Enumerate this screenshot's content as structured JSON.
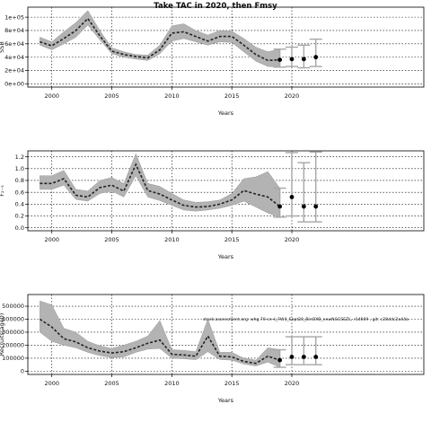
{
  "figure_title": "Take TAC in 2020, then Fmsy",
  "annotation": "stock.assessment.org: whg.70-ce-k_FW4_Sept20_BinOXB_newNGCSEZL, r14609 , git: c28ddc2a44a",
  "colors": {
    "band": "#b3b3b3",
    "median": "#222222",
    "error_bar": "#a6a6a6",
    "point": "#000000",
    "grid": "#000000"
  },
  "chart_data": [
    {
      "type": "line",
      "title": "",
      "xlabel": "Years",
      "ylabel": "SSB",
      "xlim": [
        1998,
        2031
      ],
      "ylim": [
        -5000,
        115000
      ],
      "xticks": [
        2000,
        2005,
        2010,
        2015,
        2020
      ],
      "yticks": [
        0,
        20000,
        40000,
        60000,
        80000,
        100000
      ],
      "ytick_labels": [
        "0e+00",
        "2e+04",
        "4e+04",
        "6e+04",
        "8e+04",
        "1e+05"
      ],
      "grid": true,
      "series": [
        {
          "x": [
            1999,
            2000,
            2001,
            2002,
            2003,
            2004,
            2005,
            2006,
            2007,
            2008,
            2009,
            2010,
            2011,
            2012,
            2013,
            2014,
            2015,
            2016,
            2017,
            2018,
            2019
          ],
          "median": [
            63000,
            57000,
            68000,
            80000,
            98000,
            72000,
            49000,
            44000,
            41000,
            39000,
            51000,
            76000,
            78000,
            71000,
            64000,
            71000,
            71000,
            58000,
            44000,
            35000,
            36000
          ],
          "lower": [
            58000,
            51000,
            60000,
            70000,
            88000,
            66000,
            45000,
            40000,
            37000,
            35000,
            45000,
            64000,
            68000,
            63000,
            58000,
            63000,
            62000,
            48000,
            34000,
            26000,
            25000
          ],
          "upper": [
            70000,
            63000,
            78000,
            92000,
            110000,
            80000,
            54000,
            48000,
            44000,
            43000,
            58000,
            87000,
            90000,
            80000,
            73000,
            80000,
            79000,
            68000,
            55000,
            48000,
            52000
          ]
        }
      ],
      "projections": [
        {
          "x": 2020,
          "value": 37000,
          "low": 26000,
          "high": 55000
        },
        {
          "x": 2021,
          "value": 37000,
          "low": 24000,
          "high": 58000
        },
        {
          "x": 2022,
          "value": 40000,
          "low": 26000,
          "high": 67000
        }
      ]
    },
    {
      "type": "line",
      "title": "",
      "xlabel": "Years",
      "ylabel": "F₂₋₅",
      "xlim": [
        1998,
        2031
      ],
      "ylim": [
        -0.05,
        1.3
      ],
      "xticks": [
        2000,
        2005,
        2010,
        2015,
        2020
      ],
      "yticks": [
        0.0,
        0.2,
        0.4,
        0.6,
        0.8,
        1.0,
        1.2
      ],
      "ytick_labels": [
        "0.0",
        "0.2",
        "0.4",
        "0.6",
        "0.8",
        "1.0",
        "1.2"
      ],
      "grid": true,
      "series": [
        {
          "x": [
            1999,
            2000,
            2001,
            2002,
            2003,
            2004,
            2005,
            2006,
            2007,
            2008,
            2009,
            2010,
            2011,
            2012,
            2013,
            2014,
            2015,
            2016,
            2017,
            2018,
            2019
          ],
          "median": [
            0.75,
            0.75,
            0.83,
            0.55,
            0.52,
            0.68,
            0.72,
            0.62,
            1.07,
            0.63,
            0.57,
            0.47,
            0.38,
            0.35,
            0.36,
            0.4,
            0.47,
            0.63,
            0.57,
            0.52,
            0.36
          ],
          "lower": [
            0.65,
            0.65,
            0.72,
            0.48,
            0.45,
            0.58,
            0.62,
            0.52,
            0.88,
            0.52,
            0.46,
            0.38,
            0.3,
            0.28,
            0.3,
            0.33,
            0.38,
            0.45,
            0.35,
            0.25,
            0.18
          ],
          "upper": [
            0.88,
            0.88,
            0.97,
            0.65,
            0.62,
            0.8,
            0.85,
            0.75,
            1.25,
            0.75,
            0.7,
            0.58,
            0.47,
            0.43,
            0.44,
            0.47,
            0.58,
            0.83,
            0.86,
            0.95,
            0.67
          ]
        }
      ],
      "projections": [
        {
          "x": 2020,
          "value": 0.52,
          "low": 0.2,
          "high": 1.27
        },
        {
          "x": 2021,
          "value": 0.36,
          "low": 0.1,
          "high": 1.1
        },
        {
          "x": 2022,
          "value": 0.36,
          "low": 0.1,
          "high": 1.28
        }
      ]
    },
    {
      "type": "line",
      "title": "",
      "xlabel": "Years",
      "ylabel": "Recruits(age0)",
      "xlim": [
        1998,
        2031
      ],
      "ylim": [
        -25000,
        590000
      ],
      "xticks": [
        2000,
        2005,
        2010,
        2015,
        2020
      ],
      "yticks": [
        0,
        100000,
        200000,
        300000,
        400000,
        500000
      ],
      "ytick_labels": [
        "0",
        "100000",
        "200000",
        "300000",
        "400000",
        "500000"
      ],
      "grid": true,
      "series": [
        {
          "x": [
            1999,
            2000,
            2001,
            2002,
            2003,
            2004,
            2005,
            2006,
            2007,
            2008,
            2009,
            2010,
            2011,
            2012,
            2013,
            2014,
            2015,
            2016,
            2017,
            2018,
            2019
          ],
          "median": [
            400000,
            340000,
            250000,
            225000,
            180000,
            155000,
            140000,
            150000,
            180000,
            215000,
            240000,
            130000,
            125000,
            115000,
            270000,
            115000,
            110000,
            75000,
            60000,
            115000,
            85000
          ],
          "lower": [
            300000,
            230000,
            200000,
            180000,
            145000,
            120000,
            105000,
            110000,
            145000,
            170000,
            175000,
            100000,
            95000,
            88000,
            150000,
            90000,
            85000,
            55000,
            40000,
            70000,
            30000
          ],
          "upper": [
            540000,
            510000,
            330000,
            300000,
            230000,
            195000,
            175000,
            200000,
            230000,
            270000,
            390000,
            165000,
            160000,
            150000,
            400000,
            145000,
            145000,
            100000,
            85000,
            180000,
            165000
          ]
        }
      ],
      "projections": [
        {
          "x": 2020,
          "value": 110000,
          "low": 50000,
          "high": 265000
        },
        {
          "x": 2021,
          "value": 110000,
          "low": 50000,
          "high": 265000
        },
        {
          "x": 2022,
          "value": 110000,
          "low": 50000,
          "high": 265000
        }
      ]
    }
  ]
}
